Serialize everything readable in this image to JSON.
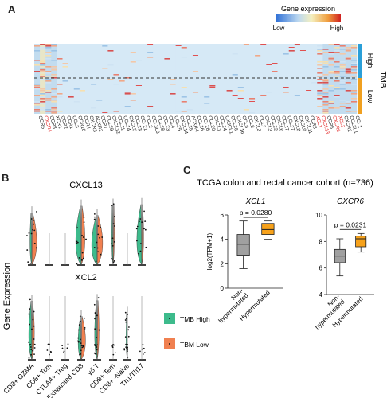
{
  "panel_a": {
    "letter": "A",
    "legend": {
      "title": "Gene expression",
      "low": "Low",
      "high": "High"
    },
    "side_title": "TMB",
    "group_high": "High",
    "group_low": "Low",
    "colors": {
      "high_bar": "#2a9fd8",
      "low_bar": "#f0a020",
      "highlight": "#e02020"
    },
    "genes": [
      {
        "label": "CCR6",
        "red": false
      },
      {
        "label": "CXCR4",
        "red": true
      },
      {
        "label": "CCR8",
        "red": false
      },
      {
        "label": "XCR1",
        "red": false
      },
      {
        "label": "CCR2",
        "red": false
      },
      {
        "label": "CCR1",
        "red": false
      },
      {
        "label": "CCL3",
        "red": false
      },
      {
        "label": "CCR10",
        "red": false
      },
      {
        "label": "CCR4",
        "red": false
      },
      {
        "label": "CXCR3",
        "red": false
      },
      {
        "label": "ACKR2",
        "red": false
      },
      {
        "label": "CCR7",
        "red": false
      },
      {
        "label": "CCL19",
        "red": false
      },
      {
        "label": "CXCL12",
        "red": false
      },
      {
        "label": "CCL11",
        "red": false
      },
      {
        "label": "CCL14",
        "red": false
      },
      {
        "label": "CXCL5",
        "red": false
      },
      {
        "label": "CCL13",
        "red": false
      },
      {
        "label": "CCL21",
        "red": false
      },
      {
        "label": "CCL2",
        "red": false
      },
      {
        "label": "CCL3L3",
        "red": false
      },
      {
        "label": "CCL18",
        "red": false
      },
      {
        "label": "CCL23",
        "red": false
      },
      {
        "label": "CCL4",
        "red": false
      },
      {
        "label": "CCL25",
        "red": false
      },
      {
        "label": "CXCL14",
        "red": false
      },
      {
        "label": "CCL15",
        "red": false
      },
      {
        "label": "ACKR4",
        "red": false
      },
      {
        "label": "CCL16",
        "red": false
      },
      {
        "label": "CCL28",
        "red": false
      },
      {
        "label": "CCL20",
        "red": false
      },
      {
        "label": "CXCL1",
        "red": false
      },
      {
        "label": "CCL24",
        "red": false
      },
      {
        "label": "CX3CL1",
        "red": false
      },
      {
        "label": "CCL26",
        "red": false
      },
      {
        "label": "CXCL16",
        "red": false
      },
      {
        "label": "CCL5",
        "red": false
      },
      {
        "label": "CCL8",
        "red": false
      },
      {
        "label": "CXCL2",
        "red": false
      },
      {
        "label": "CCL7",
        "red": false
      },
      {
        "label": "CXCL3",
        "red": false
      },
      {
        "label": "CCL22",
        "red": false
      },
      {
        "label": "CXCL6",
        "red": false
      },
      {
        "label": "CCL17",
        "red": false
      },
      {
        "label": "CCL27",
        "red": false
      },
      {
        "label": "CXCL8",
        "red": false
      },
      {
        "label": "CXCL9",
        "red": false
      },
      {
        "label": "CXCL11",
        "red": false
      },
      {
        "label": "CCR3",
        "red": false
      },
      {
        "label": "XCL1",
        "red": true
      },
      {
        "label": "CXCL13",
        "red": true
      },
      {
        "label": "CCR5",
        "red": false
      },
      {
        "label": "CXCR6",
        "red": true
      },
      {
        "label": "XCL2",
        "red": true
      },
      {
        "label": "CXCR2",
        "red": false
      },
      {
        "label": "CCL3L1",
        "red": false
      },
      {
        "label": "CCL1",
        "red": false
      }
    ]
  },
  "panel_b": {
    "letter": "B",
    "ylabel": "Gene Expression",
    "top_title": "CXCL13",
    "bottom_title": "XCL2",
    "legend": [
      {
        "label": "TMB High",
        "color": "#3dbb8c"
      },
      {
        "label": "TBM Low",
        "color": "#f08050"
      }
    ],
    "cell_types": [
      "CD8+ GZMA",
      "CD8+ Tcm",
      "CTLA4+ Treg",
      "Exhausted CD8",
      "γδ T",
      "CD8+ Tem",
      "CD8+ -Naive",
      "Th1/Th17"
    ]
  },
  "panel_c": {
    "letter": "C",
    "title": "TCGA colon and rectal cancer cohort  (n=736)",
    "chart_data": [
      {
        "type": "box",
        "title": "XCL1",
        "ylabel": "log2(TPM+1)",
        "ylim": [
          0,
          6
        ],
        "yticks": [
          "0",
          "2",
          "4",
          "6"
        ],
        "categories": [
          "Non-\nhypermutated",
          "Hypermutated"
        ],
        "category_lines": [
          [
            "Non-",
            "hypermutated"
          ],
          [
            "Hypermutated"
          ]
        ],
        "pvalue": "p = 0.0280",
        "boxes": [
          {
            "name": "Non-hypermutated",
            "min": 1.6,
            "q1": 2.7,
            "median": 3.6,
            "q3": 4.4,
            "max": 5.5,
            "color": "#a0a0a0"
          },
          {
            "name": "Hypermutated",
            "min": 4.0,
            "q1": 4.4,
            "median": 4.8,
            "q3": 5.3,
            "max": 5.5,
            "color": "#f7a21b"
          }
        ]
      },
      {
        "type": "box",
        "title": "CXCR6",
        "ylabel": "",
        "ylim": [
          4,
          10
        ],
        "yticks": [
          "4",
          "6",
          "8",
          "10"
        ],
        "categories": [
          "Non-\nhypermutated",
          "Hypermutated"
        ],
        "category_lines": [
          [
            "Non-",
            "hypermutated"
          ],
          [
            "Hypermutated"
          ]
        ],
        "pvalue": "p = 0.0231",
        "boxes": [
          {
            "name": "Non-hypermutated",
            "min": 5.4,
            "q1": 6.4,
            "median": 6.9,
            "q3": 7.4,
            "max": 8.2,
            "color": "#a0a0a0"
          },
          {
            "name": "Hypermutated",
            "min": 7.2,
            "q1": 7.6,
            "median": 8.2,
            "q3": 8.4,
            "max": 8.6,
            "color": "#f7a21b"
          }
        ]
      }
    ]
  }
}
